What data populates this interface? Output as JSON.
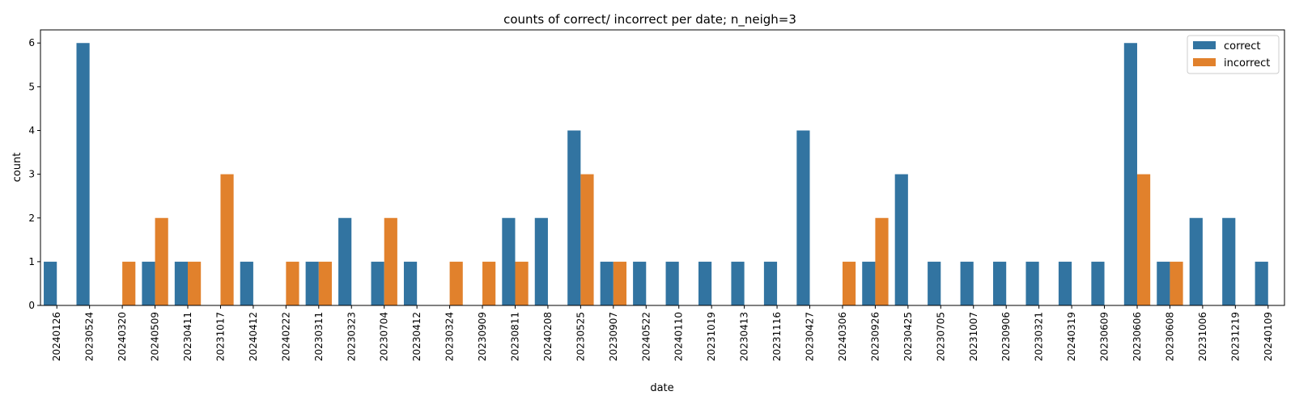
{
  "chart_data": {
    "type": "bar",
    "title": "counts of correct/ incorrect per date; n_neigh=3",
    "xlabel": "date",
    "ylabel": "count",
    "ylim": [
      0,
      6.3
    ],
    "yticks": [
      0,
      1,
      2,
      3,
      4,
      5,
      6
    ],
    "grid": false,
    "legend_position": "top-right",
    "categories": [
      "20240126",
      "20230524",
      "20240320",
      "20240509",
      "20230411",
      "20231017",
      "20240412",
      "20240222",
      "20230311",
      "20230323",
      "20230704",
      "20230412",
      "20230324",
      "20230909",
      "20230811",
      "20240208",
      "20230525",
      "20230907",
      "20240522",
      "20240110",
      "20231019",
      "20230413",
      "20231116",
      "20230427",
      "20240306",
      "20230926",
      "20230425",
      "20230705",
      "20231007",
      "20230906",
      "20230321",
      "20240319",
      "20230609",
      "20230606",
      "20230608",
      "20231006",
      "20231219",
      "20240109"
    ],
    "series": [
      {
        "name": "correct",
        "color": "#3274a1",
        "values": [
          1,
          6,
          0,
          1,
          1,
          0,
          1,
          0,
          1,
          2,
          1,
          1,
          0,
          0,
          2,
          2,
          4,
          1,
          1,
          1,
          1,
          1,
          1,
          4,
          0,
          1,
          3,
          1,
          1,
          1,
          1,
          1,
          1,
          6,
          1,
          2,
          2,
          1
        ]
      },
      {
        "name": "incorrect",
        "color": "#e1812c",
        "values": [
          0,
          0,
          1,
          2,
          1,
          3,
          0,
          1,
          1,
          0,
          2,
          0,
          1,
          1,
          1,
          0,
          3,
          1,
          0,
          0,
          0,
          0,
          0,
          0,
          1,
          2,
          0,
          0,
          0,
          0,
          0,
          0,
          0,
          3,
          1,
          0,
          0,
          0
        ]
      }
    ]
  }
}
